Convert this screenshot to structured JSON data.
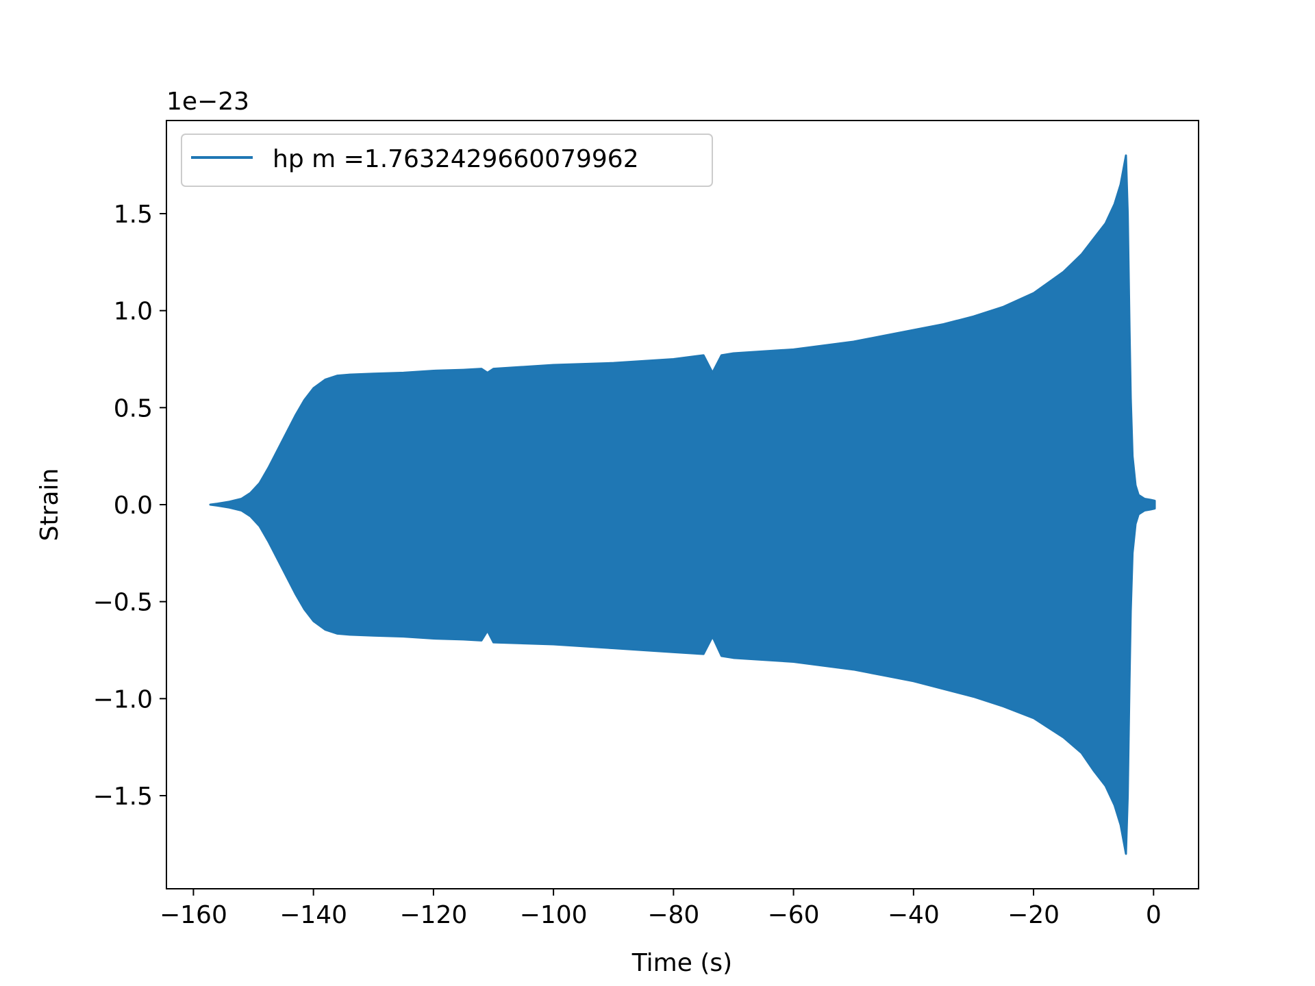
{
  "chart_data": {
    "type": "line",
    "title": "",
    "xlabel": "Time (s)",
    "ylabel": "Strain",
    "offset_text": "1e−23",
    "xlim": [
      -164.5,
      7.5
    ],
    "ylim": [
      -1.98,
      1.98
    ],
    "x_ticks": [
      -160,
      -140,
      -120,
      -100,
      -80,
      -60,
      -40,
      -20,
      0
    ],
    "x_tick_labels": [
      "−160",
      "−140",
      "−120",
      "−100",
      "−80",
      "−60",
      "−40",
      "−20",
      "0"
    ],
    "y_ticks": [
      -1.5,
      -1.0,
      -0.5,
      0.0,
      0.5,
      1.0,
      1.5
    ],
    "y_tick_labels": [
      "−1.5",
      "−1.0",
      "−0.5",
      "0.0",
      "0.5",
      "1.0",
      "1.5"
    ],
    "grid": false,
    "legend_position": "top-left",
    "series": [
      {
        "name": "hp m =1.7632429660079962",
        "color": "#1f77b4",
        "envelope_upper": [
          [
            -157.2,
            0.0
          ],
          [
            -156.0,
            0.005
          ],
          [
            -154.0,
            0.015
          ],
          [
            -152.0,
            0.03
          ],
          [
            -150.5,
            0.06
          ],
          [
            -149.0,
            0.11
          ],
          [
            -147.5,
            0.19
          ],
          [
            -146.0,
            0.28
          ],
          [
            -144.5,
            0.37
          ],
          [
            -143.0,
            0.46
          ],
          [
            -141.5,
            0.54
          ],
          [
            -140.0,
            0.6
          ],
          [
            -138.0,
            0.645
          ],
          [
            -136.0,
            0.665
          ],
          [
            -134.0,
            0.67
          ],
          [
            -130.0,
            0.675
          ],
          [
            -125.0,
            0.68
          ],
          [
            -120.0,
            0.69
          ],
          [
            -115.0,
            0.695
          ],
          [
            -112.0,
            0.7
          ],
          [
            -111.0,
            0.68
          ],
          [
            -110.0,
            0.7
          ],
          [
            -100.0,
            0.72
          ],
          [
            -90.0,
            0.73
          ],
          [
            -80.0,
            0.75
          ],
          [
            -75.0,
            0.77
          ],
          [
            -73.5,
            0.68
          ],
          [
            -72.0,
            0.77
          ],
          [
            -70.0,
            0.78
          ],
          [
            -60.0,
            0.8
          ],
          [
            -50.0,
            0.84
          ],
          [
            -45.0,
            0.87
          ],
          [
            -40.0,
            0.9
          ],
          [
            -35.0,
            0.93
          ],
          [
            -30.0,
            0.97
          ],
          [
            -25.0,
            1.02
          ],
          [
            -20.0,
            1.09
          ],
          [
            -15.0,
            1.2
          ],
          [
            -12.0,
            1.29
          ],
          [
            -10.0,
            1.37
          ],
          [
            -8.0,
            1.45
          ],
          [
            -6.5,
            1.55
          ],
          [
            -5.5,
            1.65
          ],
          [
            -4.6,
            1.8
          ],
          [
            -4.3,
            1.5
          ],
          [
            -4.0,
            0.9
          ],
          [
            -3.8,
            0.55
          ],
          [
            -3.5,
            0.25
          ],
          [
            -3.0,
            0.1
          ],
          [
            -2.5,
            0.05
          ],
          [
            -1.5,
            0.03
          ],
          [
            -0.5,
            0.025
          ],
          [
            0.2,
            0.02
          ]
        ],
        "envelope_lower": [
          [
            -157.2,
            0.0
          ],
          [
            -156.0,
            -0.005
          ],
          [
            -154.0,
            -0.015
          ],
          [
            -152.0,
            -0.03
          ],
          [
            -150.5,
            -0.06
          ],
          [
            -149.0,
            -0.11
          ],
          [
            -147.5,
            -0.19
          ],
          [
            -146.0,
            -0.28
          ],
          [
            -144.5,
            -0.37
          ],
          [
            -143.0,
            -0.46
          ],
          [
            -141.5,
            -0.54
          ],
          [
            -140.0,
            -0.6
          ],
          [
            -138.0,
            -0.645
          ],
          [
            -136.0,
            -0.665
          ],
          [
            -134.0,
            -0.67
          ],
          [
            -130.0,
            -0.675
          ],
          [
            -125.0,
            -0.68
          ],
          [
            -120.0,
            -0.69
          ],
          [
            -115.0,
            -0.695
          ],
          [
            -112.0,
            -0.7
          ],
          [
            -111.0,
            -0.65
          ],
          [
            -110.0,
            -0.71
          ],
          [
            -100.0,
            -0.72
          ],
          [
            -90.0,
            -0.74
          ],
          [
            -80.0,
            -0.76
          ],
          [
            -75.0,
            -0.77
          ],
          [
            -73.5,
            -0.68
          ],
          [
            -72.0,
            -0.78
          ],
          [
            -70.0,
            -0.79
          ],
          [
            -60.0,
            -0.81
          ],
          [
            -50.0,
            -0.85
          ],
          [
            -45.0,
            -0.88
          ],
          [
            -40.0,
            -0.91
          ],
          [
            -35.0,
            -0.95
          ],
          [
            -30.0,
            -0.99
          ],
          [
            -25.0,
            -1.04
          ],
          [
            -20.0,
            -1.1
          ],
          [
            -15.0,
            -1.2
          ],
          [
            -12.0,
            -1.28
          ],
          [
            -10.0,
            -1.37
          ],
          [
            -8.0,
            -1.45
          ],
          [
            -6.5,
            -1.55
          ],
          [
            -5.5,
            -1.65
          ],
          [
            -4.6,
            -1.8
          ],
          [
            -4.3,
            -1.5
          ],
          [
            -4.0,
            -0.9
          ],
          [
            -3.8,
            -0.55
          ],
          [
            -3.5,
            -0.25
          ],
          [
            -3.0,
            -0.1
          ],
          [
            -2.5,
            -0.05
          ],
          [
            -1.5,
            -0.03
          ],
          [
            -0.5,
            -0.025
          ],
          [
            0.2,
            -0.02
          ]
        ]
      }
    ]
  }
}
